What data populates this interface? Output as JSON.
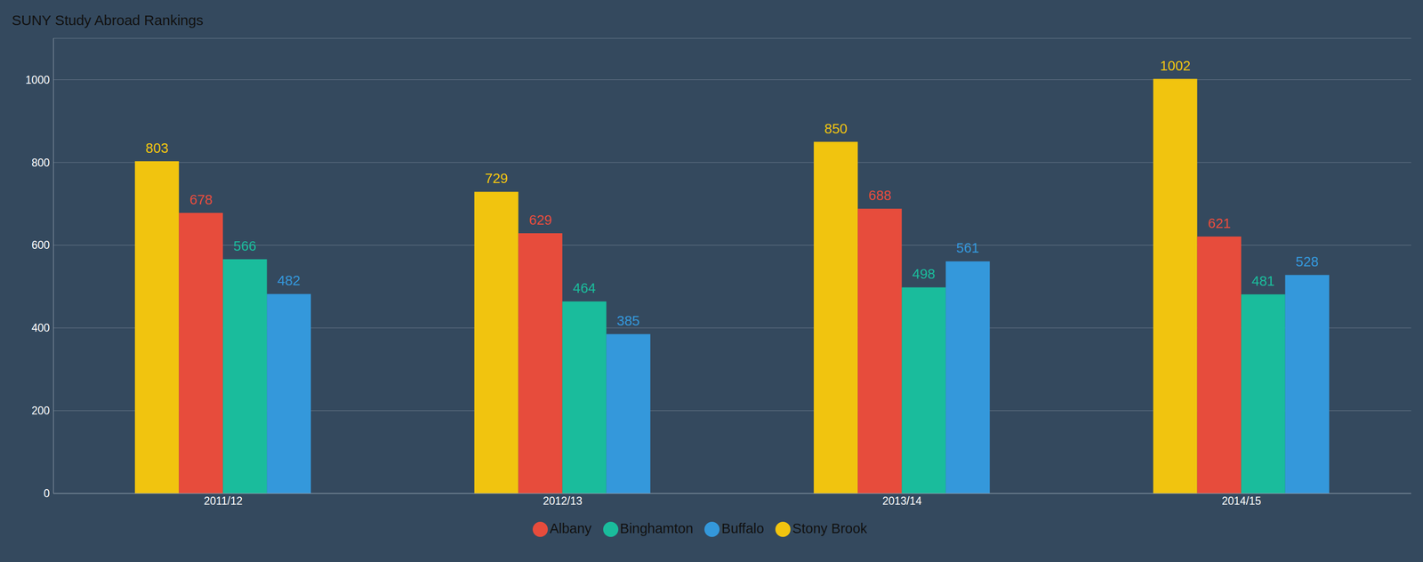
{
  "chart_data": {
    "type": "bar",
    "title": "SUNY Study Abroad Rankings",
    "categories": [
      "2011/12",
      "2012/13",
      "2013/14",
      "2014/15"
    ],
    "series": [
      {
        "name": "Stony Brook",
        "color": "#f1c40f",
        "values": [
          803,
          729,
          850,
          1002
        ]
      },
      {
        "name": "Albany",
        "color": "#e74c3c",
        "values": [
          678,
          629,
          688,
          621
        ]
      },
      {
        "name": "Binghamton",
        "color": "#1abc9c",
        "values": [
          566,
          464,
          498,
          481
        ]
      },
      {
        "name": "Buffalo",
        "color": "#3498db",
        "values": [
          482,
          385,
          561,
          528
        ]
      }
    ],
    "ylim": [
      0,
      1100
    ],
    "yticks": [
      0,
      200,
      400,
      600,
      800,
      1000
    ],
    "grid": true,
    "legend": "bottom",
    "data_labels": true
  }
}
